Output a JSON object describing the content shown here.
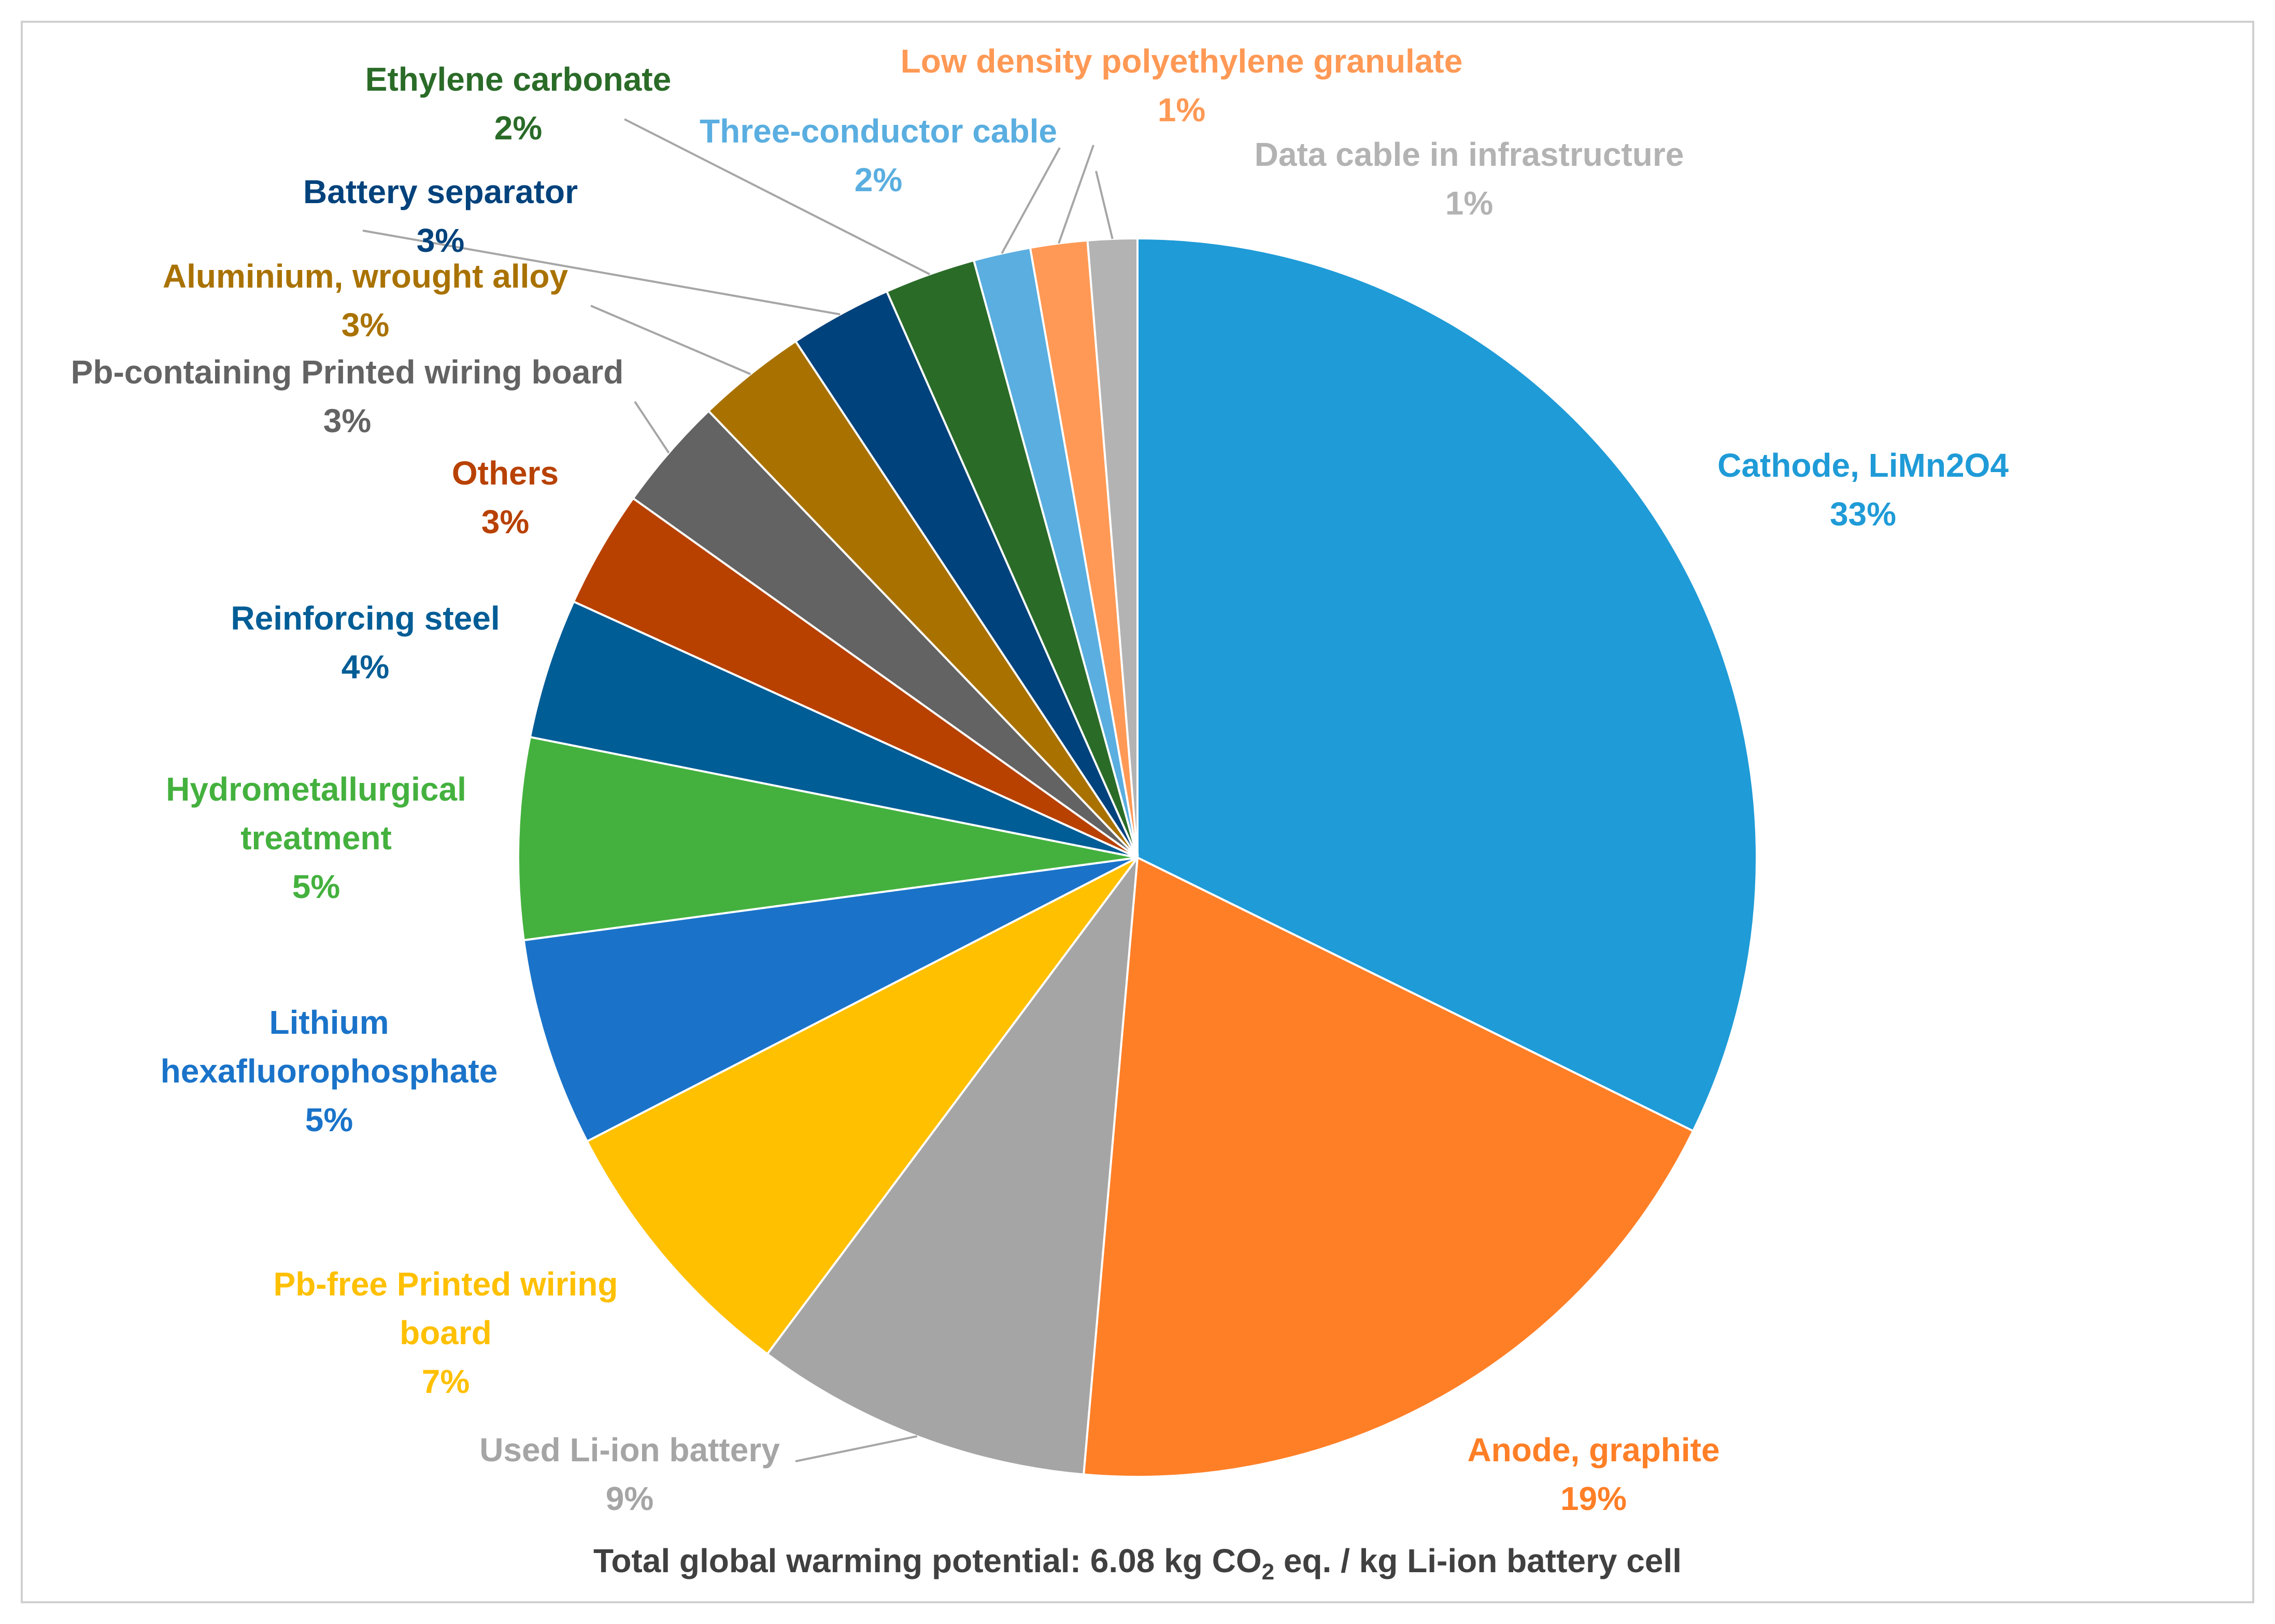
{
  "chart_data": {
    "type": "pie",
    "start_angle_deg": 0,
    "direction": "clockwise",
    "slices": [
      {
        "label": "Cathode, LiMn2O4",
        "percent_label": "33%",
        "value": 32.6,
        "color": "#1f9bd7"
      },
      {
        "label": "Anode, graphite",
        "percent_label": "19%",
        "value": 19.3,
        "color": "#ff7f27"
      },
      {
        "label": "Used Li-ion battery",
        "percent_label": "9%",
        "value": 8.9,
        "color": "#a5a5a5"
      },
      {
        "label": "Pb-free Printed wiring board",
        "percent_label": "7%",
        "value": 7.3,
        "color": "#ffc000"
      },
      {
        "label": "Lithium hexafluorophosphate",
        "percent_label": "5%",
        "value": 5.5,
        "color": "#1a73c9"
      },
      {
        "label": "Hydrometallurgical treatment",
        "percent_label": "5%",
        "value": 5.3,
        "color": "#44b13e"
      },
      {
        "label": "Reinforcing steel",
        "percent_label": "4%",
        "value": 3.7,
        "color": "#005d96"
      },
      {
        "label": "Others",
        "percent_label": "3%",
        "value": 3.1,
        "color": "#b84100"
      },
      {
        "label": "Pb-containing Printed wiring board",
        "percent_label": "3%",
        "value": 3.0,
        "color": "#636363"
      },
      {
        "label": "Aluminium, wrought alloy",
        "percent_label": "3%",
        "value": 2.9,
        "color": "#a97200"
      },
      {
        "label": "Battery separator",
        "percent_label": "3%",
        "value": 2.7,
        "color": "#00427c"
      },
      {
        "label": "Ethylene carbonate",
        "percent_label": "2%",
        "value": 2.4,
        "color": "#2a6b28"
      },
      {
        "label": "Three-conductor cable",
        "percent_label": "2%",
        "value": 1.5,
        "color": "#5aaee0"
      },
      {
        "label": "Low density polyethylene granulate",
        "percent_label": "1%",
        "value": 1.5,
        "color": "#ff9955"
      },
      {
        "label": "Data cable in infrastructure",
        "percent_label": "1%",
        "value": 1.3,
        "color": "#b3b3b3"
      }
    ],
    "label_colors": {
      "Cathode, LiMn2O4": "#1f9bd7",
      "Anode, graphite": "#ff7f27",
      "Used Li-ion battery": "#a5a5a5",
      "Pb-free Printed wiring board": "#ffc000",
      "Lithium hexafluorophosphate": "#1a73c9",
      "Hydrometallurgical treatment": "#44b13e",
      "Reinforcing steel": "#005d96",
      "Others": "#b84100",
      "Pb-containing Printed wiring board": "#636363",
      "Aluminium, wrought alloy": "#a97200",
      "Battery separator": "#00427c",
      "Ethylene carbonate": "#2a6b28",
      "Three-conductor cable": "#5aaee0",
      "Low density polyethylene granulate": "#ff9955",
      "Data cable in infrastructure": "#b3b3b3"
    }
  },
  "footnote": {
    "prefix": "Total global warming potential: 6.08 kg CO",
    "subscript": "2",
    "suffix": " eq. / kg Li-ion battery cell"
  }
}
